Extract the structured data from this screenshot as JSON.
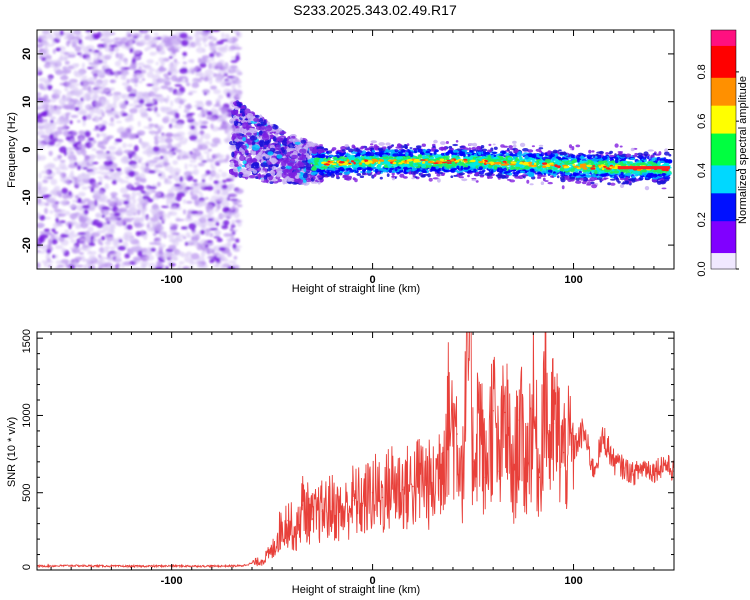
{
  "title": "S233.2025.343.02.49.R17",
  "chart_data": [
    {
      "type": "heatmap",
      "name": "spectrogram",
      "xlabel": "Height of straight line (km)",
      "ylabel": "Frequency (Hz)",
      "xlim": [
        -167,
        150
      ],
      "ylim": [
        -25,
        25
      ],
      "xticks": [
        {
          "value": -100,
          "label": "-100"
        },
        {
          "value": 0,
          "label": "0"
        },
        {
          "value": 100,
          "label": "100"
        }
      ],
      "yticks": [
        {
          "value": 20,
          "label": "20"
        },
        {
          "value": 10,
          "label": "10"
        },
        {
          "value": 0,
          "label": "0"
        },
        {
          "value": -10,
          "label": "-10"
        },
        {
          "value": -20,
          "label": "-20"
        }
      ],
      "colorbar": {
        "label": "Normalized spectral amplitude",
        "range": [
          0,
          0.97
        ],
        "ticks": [
          {
            "value": 0.0,
            "label": "0.0"
          },
          {
            "value": 0.2,
            "label": "0.2"
          },
          {
            "value": 0.4,
            "label": "0.4"
          },
          {
            "value": 0.6,
            "label": "0.6"
          },
          {
            "value": 0.8,
            "label": "0.8"
          }
        ],
        "colors": [
          "#e6e6fa",
          "#8a2be2",
          "#0000ff",
          "#00ffff",
          "#00ff00",
          "#ffff00",
          "#ff8c00",
          "#ff0000",
          "#ff1493"
        ]
      },
      "signal_band": {
        "description_points": [
          {
            "x": -70,
            "y": 3
          },
          {
            "x": -50,
            "y": -1
          },
          {
            "x": -30,
            "y": -3
          },
          {
            "x": 0,
            "y": -2.5
          },
          {
            "x": 50,
            "y": -2.5
          },
          {
            "x": 100,
            "y": -3.5
          },
          {
            "x": 148,
            "y": -4
          }
        ],
        "noise_region_x": [
          -167,
          -66
        ]
      }
    },
    {
      "type": "line",
      "name": "snr",
      "xlabel": "Height of straight line (km)",
      "ylabel": "SNR (10 * v/v)",
      "xlim": [
        -167,
        150
      ],
      "ylim": [
        0,
        1540
      ],
      "xticks": [
        {
          "value": -100,
          "label": "-100"
        },
        {
          "value": 0,
          "label": "0"
        },
        {
          "value": 100,
          "label": "100"
        }
      ],
      "yticks": [
        {
          "value": 0,
          "label": "0"
        },
        {
          "value": 500,
          "label": "500"
        },
        {
          "value": 1000,
          "label": "1000"
        },
        {
          "value": 1500,
          "label": "1500"
        }
      ],
      "color": "#e8403a",
      "series": [
        {
          "name": "SNR",
          "x": [
            -167,
            -150,
            -120,
            -100,
            -80,
            -65,
            -55,
            -50,
            -46,
            -42,
            -38,
            -35,
            -30,
            -25,
            -20,
            -15,
            -10,
            -5,
            0,
            5,
            10,
            15,
            20,
            25,
            30,
            35,
            38,
            42,
            45,
            48,
            50,
            53,
            56,
            60,
            63,
            66,
            70,
            73,
            76,
            80,
            83,
            86,
            88,
            90,
            95,
            100,
            105,
            110,
            115,
            120,
            125,
            130,
            135,
            140,
            145,
            150
          ],
          "y": [
            25,
            28,
            24,
            26,
            25,
            27,
            60,
            120,
            260,
            320,
            230,
            420,
            330,
            380,
            410,
            360,
            450,
            430,
            500,
            470,
            560,
            520,
            540,
            600,
            520,
            760,
            1000,
            880,
            620,
            1540,
            700,
            1040,
            600,
            1030,
            640,
            1020,
            560,
            970,
            660,
            1040,
            600,
            1300,
            760,
            950,
            760,
            780,
            900,
            640,
            860,
            700,
            660,
            620,
            670,
            640,
            690,
            640
          ]
        }
      ]
    }
  ]
}
